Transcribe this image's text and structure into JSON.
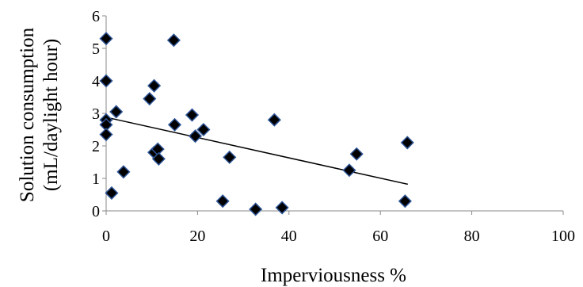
{
  "chart_data": {
    "type": "scatter",
    "title": "",
    "xlabel": "Imperviousness %",
    "ylabel_lines": [
      "Solution consumption",
      "(mL/daylight hour)"
    ],
    "xlim": [
      0,
      100
    ],
    "ylim": [
      0,
      6
    ],
    "x_ticks": [
      "0",
      "20",
      "40",
      "60",
      "80",
      "100"
    ],
    "y_ticks": [
      "0",
      "1",
      "2",
      "3",
      "4",
      "5",
      "6"
    ],
    "grid": false,
    "legend": "none",
    "marker_color": "#000000",
    "marker_edge_color": "#2e5597",
    "trendline_color": "#000000",
    "series": [
      {
        "points": [
          [
            0.0,
            5.3
          ],
          [
            0.0,
            4.0
          ],
          [
            0.0,
            2.8
          ],
          [
            0.0,
            2.65
          ],
          [
            0.0,
            2.35
          ],
          [
            1.2,
            0.55
          ],
          [
            2.2,
            3.05
          ],
          [
            3.8,
            1.2
          ],
          [
            9.5,
            3.45
          ],
          [
            10.5,
            3.85
          ],
          [
            10.5,
            1.8
          ],
          [
            11.3,
            1.9
          ],
          [
            11.5,
            1.6
          ],
          [
            14.8,
            5.25
          ],
          [
            15.0,
            2.65
          ],
          [
            18.8,
            2.95
          ],
          [
            19.5,
            2.3
          ],
          [
            21.3,
            2.5
          ],
          [
            25.5,
            0.3
          ],
          [
            27.0,
            1.65
          ],
          [
            32.7,
            0.05
          ],
          [
            36.8,
            2.8
          ],
          [
            38.5,
            0.1
          ],
          [
            53.2,
            1.25
          ],
          [
            54.8,
            1.75
          ],
          [
            65.4,
            0.3
          ],
          [
            65.9,
            2.1
          ]
        ]
      }
    ],
    "trendline": {
      "x": [
        0,
        66
      ],
      "y": [
        2.88,
        0.82
      ]
    }
  }
}
